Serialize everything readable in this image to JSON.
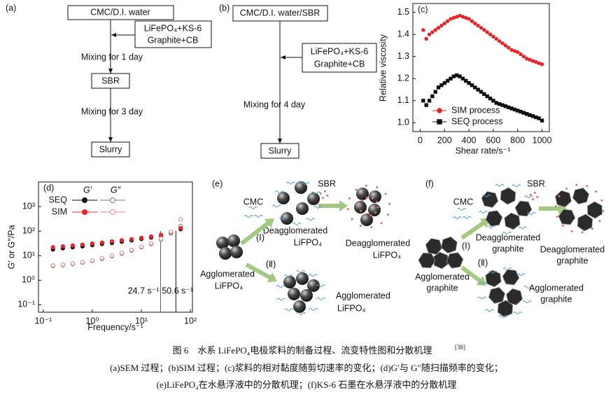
{
  "panel_a": {
    "label": "(a)",
    "start": "CMC/D.I. water",
    "additive": [
      "LiFePO₄+KS-6",
      "Graphite+CB"
    ],
    "step1": "Mixing for 1 day",
    "binder": "SBR",
    "step2": "Mixing for 3 day",
    "end": "Slurry"
  },
  "panel_b": {
    "label": "(b)",
    "start": "CMC/D.I. water/SBR",
    "additive": [
      "LiFePO₄+KS-6",
      "Graphite+CB"
    ],
    "step1": "Mixing for 4 day",
    "end": "Slurry"
  },
  "chart_data": [
    {
      "type": "scatter",
      "label": "(c)",
      "xlabel": "Shear rate/s⁻¹",
      "ylabel": "Relative viscosity",
      "xlim": [
        -60,
        1060
      ],
      "ylim": [
        0.96,
        1.54
      ],
      "xticks": [
        0,
        200,
        400,
        600,
        800,
        1000
      ],
      "yticks": [
        {
          "value": 1,
          "label": "1.0"
        },
        1.1,
        1.2,
        1.3,
        1.4,
        1.5
      ],
      "x": [
        25,
        50,
        75,
        100,
        125,
        150,
        175,
        200,
        225,
        250,
        275,
        300,
        325,
        350,
        375,
        400,
        425,
        450,
        475,
        500,
        525,
        550,
        575,
        600,
        625,
        650,
        675,
        700,
        725,
        750,
        775,
        800,
        825,
        850,
        875,
        900,
        925,
        950,
        975,
        1000
      ],
      "series": [
        {
          "name": "SIM process",
          "color": "#e8242a",
          "marker": "circle",
          "filled": true,
          "values": [
            1.42,
            1.38,
            1.4,
            1.41,
            1.42,
            1.43,
            1.44,
            1.45,
            1.46,
            1.47,
            1.475,
            1.48,
            1.485,
            1.48,
            1.475,
            1.47,
            1.46,
            1.45,
            1.44,
            1.43,
            1.42,
            1.41,
            1.4,
            1.39,
            1.38,
            1.37,
            1.36,
            1.35,
            1.34,
            1.33,
            1.325,
            1.32,
            1.31,
            1.3,
            1.29,
            1.285,
            1.28,
            1.275,
            1.27,
            1.265
          ]
        },
        {
          "name": "SEQ process",
          "color": "#111111",
          "marker": "square",
          "filled": true,
          "values": [
            1.1,
            1.08,
            1.1,
            1.12,
            1.14,
            1.16,
            1.17,
            1.18,
            1.19,
            1.2,
            1.21,
            1.215,
            1.21,
            1.2,
            1.19,
            1.18,
            1.17,
            1.16,
            1.15,
            1.14,
            1.13,
            1.12,
            1.11,
            1.1,
            1.09,
            1.085,
            1.08,
            1.075,
            1.07,
            1.065,
            1.06,
            1.055,
            1.05,
            1.045,
            1.04,
            1.035,
            1.03,
            1.025,
            1.02,
            1.01
          ]
        }
      ]
    },
    {
      "type": "scatter",
      "label": "(d)",
      "xlabel": "Frequency/s⁻¹",
      "ylabel": "G′ or G″/Pa",
      "log_x": true,
      "log_y": true,
      "xlim": [
        0.08,
        110
      ],
      "ylim": [
        0.05,
        10000
      ],
      "xticks": [
        {
          "value": 0.1,
          "label": "10⁻¹"
        },
        {
          "value": 1,
          "label": "10⁰"
        },
        {
          "value": 10,
          "label": "10¹"
        },
        {
          "value": 100,
          "label": "10²"
        }
      ],
      "yticks": [
        {
          "value": 0.1,
          "label": "10⁻¹"
        },
        {
          "value": 1,
          "label": "10⁰"
        },
        {
          "value": 10,
          "label": "10¹"
        },
        {
          "value": 100,
          "label": "10²"
        },
        {
          "value": 1000,
          "label": "10³"
        }
      ],
      "legend": {
        "columns": [
          "G′",
          "G″"
        ],
        "rows": [
          "SEQ",
          "SIM"
        ]
      },
      "x": [
        0.158,
        0.251,
        0.398,
        0.631,
        1,
        1.58,
        2.51,
        3.98,
        6.31,
        10,
        15.8,
        25.1,
        39.8,
        63.1
      ],
      "series": [
        {
          "row": 0,
          "column": 0,
          "color": "#111111",
          "marker": "circle",
          "filled": true,
          "values": [
            18,
            20,
            22,
            24,
            27,
            30,
            33,
            37,
            42,
            48,
            55,
            65,
            85,
            120
          ]
        },
        {
          "row": 0,
          "column": 1,
          "color": "#777777",
          "marker": "circle",
          "filled": false,
          "values": [
            3.8,
            4.1,
            4.6,
            5.2,
            6.2,
            7.5,
            9.5,
            12,
            16,
            22,
            30,
            45,
            80,
            160
          ]
        },
        {
          "row": 1,
          "column": 0,
          "color": "#e8242a",
          "marker": "circle",
          "filled": true,
          "values": [
            22,
            24,
            26,
            28,
            31,
            34,
            38,
            42,
            47,
            53,
            60,
            70,
            90,
            130
          ]
        },
        {
          "row": 1,
          "column": 1,
          "color": "#f08080",
          "marker": "circle",
          "filled": false,
          "values": [
            4,
            4.3,
            4.8,
            5.5,
            6.5,
            8,
            10,
            13,
            17,
            23,
            32,
            50,
            95,
            300
          ]
        }
      ],
      "annotations": [
        {
          "text": "24.7 s⁻¹",
          "x": 24.7,
          "color": "#e8242a"
        },
        {
          "text": "50.6 s⁻¹",
          "x": 50.6,
          "color": "#111111"
        }
      ]
    }
  ],
  "panel_e": {
    "label": "(e)",
    "cmc": "CMC",
    "sbr": "SBR",
    "route1": "(Ⅰ)",
    "route2": "(Ⅱ)",
    "start": [
      "Agglomerated",
      "LiFPO₄"
    ],
    "middle": [
      "Deagglomerated",
      "LiFPO₄"
    ],
    "final": [
      "Deagglomerated",
      "LiFPO₄"
    ],
    "route2_result": [
      "Agglomerated",
      "LiFPO₄"
    ]
  },
  "panel_f": {
    "label": "(f)",
    "cmc": "CMC",
    "sbr": "SBR",
    "route1": "(Ⅰ)",
    "route2": "(Ⅱ)",
    "start": [
      "Agglomerated",
      "graphite"
    ],
    "middle": [
      "Deagglomerated",
      "graphite"
    ],
    "final": [
      "Deagglomerated",
      "graphite"
    ],
    "route2_result": [
      "Agglomerated",
      "graphite"
    ]
  },
  "caption": {
    "title": "图 6　水系 LiFePO₄电极浆料的制备过程、流变特性图和分散机理",
    "ref": "[38]",
    "lines": [
      "(a)SEM 过程；(b)SIM 过程；(c)浆料的相对黏度随剪切速率的变化；(d)G′与 G″随扫描频率的变化；",
      "(e)LiFePO₄在水悬浮液中的分散机理；(f)KS-6 石墨在水悬浮液中的分散机理"
    ]
  }
}
